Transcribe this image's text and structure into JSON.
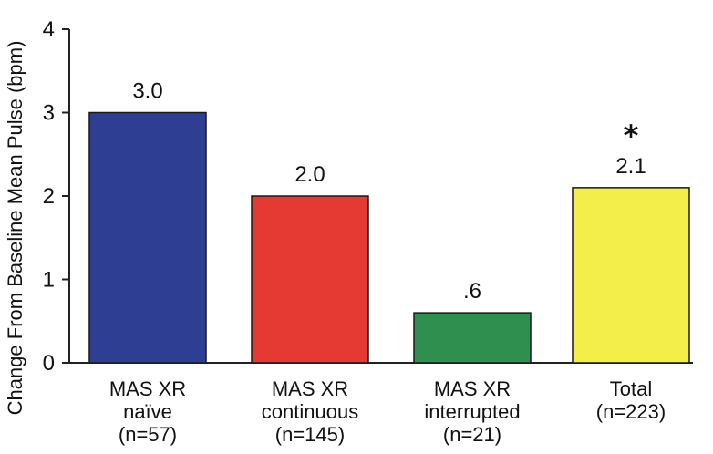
{
  "chart_data": {
    "type": "bar",
    "ylabel": "Change From Baseline Mean Pulse (bpm)",
    "ylim": [
      0,
      4
    ],
    "yticks": [
      "0",
      "1",
      "2",
      "3",
      "4"
    ],
    "categories": [
      [
        "MAS XR",
        "naïve",
        "(n=57)"
      ],
      [
        "MAS XR",
        "continuous",
        "(n=145)"
      ],
      [
        "MAS XR",
        "interrupted",
        "(n=21)"
      ],
      [
        "Total",
        "(n=223)"
      ]
    ],
    "values": [
      3.0,
      2.0,
      0.6,
      2.1
    ],
    "value_labels": [
      "3.0",
      "2.0",
      ".6",
      "2.1"
    ],
    "colors": [
      "#2e3e92",
      "#e53a33",
      "#2f8f4e",
      "#f4ee4a"
    ],
    "annotations": [
      {
        "category_index": 3,
        "text": "*"
      }
    ],
    "grid": false,
    "legend": "none"
  }
}
